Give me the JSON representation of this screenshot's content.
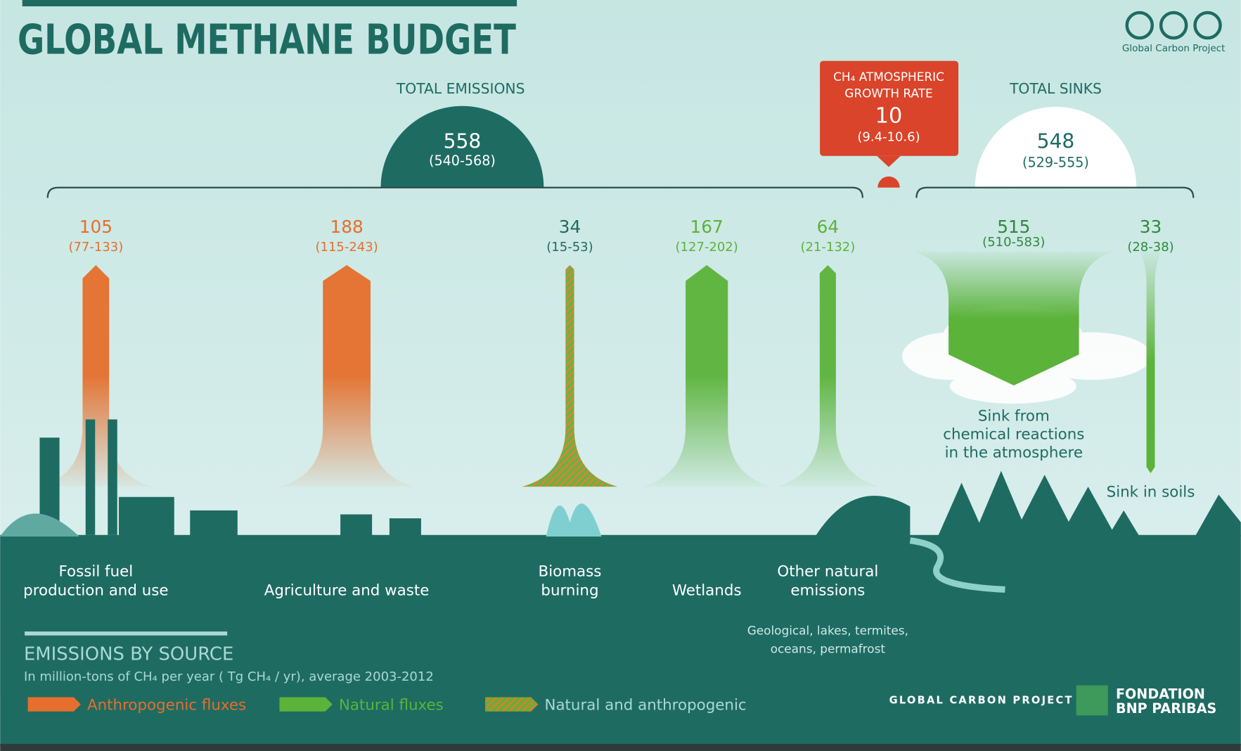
{
  "header": {
    "title": "GLOBAL METHANE BUDGET",
    "credit": "Global Carbon Project"
  },
  "emissions": {
    "title": "TOTAL EMISSIONS",
    "value": 558,
    "range": "(540-568)"
  },
  "growth": {
    "title": [
      "CH₄ ATMOSPHERIC",
      "GROWTH RATE"
    ],
    "value": 10,
    "range": "(9.4-10.6)"
  },
  "sinks": {
    "title": "TOTAL SINKS",
    "value": 548,
    "range": "(529-555)"
  },
  "sources": [
    {
      "value": 105,
      "range": "(77-133)",
      "label": [
        "Fossil fuel",
        "production and use"
      ],
      "color": "#e56f2c"
    },
    {
      "value": 188,
      "range": "(115-243)",
      "label": [
        "Agriculture and waste"
      ],
      "color": "#e56f2c"
    },
    {
      "value": 34,
      "range": "(15-53)",
      "label": [
        "Biomass",
        "burning"
      ],
      "color": "#c9862c",
      "stripe": "#5bb33a"
    },
    {
      "value": 167,
      "range": "(127-202)",
      "label": [
        "Wetlands"
      ],
      "color": "#5bb33a"
    },
    {
      "value": 64,
      "range": "(21-132)",
      "label": [
        "Other natural",
        "emissions"
      ],
      "note": [
        "Geological, lakes, termites,",
        "oceans, permafrost"
      ],
      "color": "#5bb33a"
    }
  ],
  "sink_items": [
    {
      "value": 515,
      "range": "(510-583)",
      "label": [
        "Sink from",
        "chemical reactions",
        "in the atmosphere"
      ],
      "color": "#5bb33a"
    },
    {
      "value": 33,
      "range": "(28-38)",
      "label": [
        "Sink in soils"
      ],
      "color": "#5bb33a"
    }
  ],
  "legend": {
    "title": "EMISSIONS BY SOURCE",
    "subtitle": "In million-tons of CH₄ per year ( Tg CH₄ / yr), average 2003-2012",
    "items": [
      {
        "label": "Anthropogenic fluxes",
        "color": "#e56f2c"
      },
      {
        "label": "Natural fluxes",
        "color": "#5bb33a"
      },
      {
        "label": "Natural and anthropogenic",
        "color": "#c9862c",
        "stripe": "#5bb33a"
      }
    ]
  },
  "logos": {
    "gcp": "GLOBAL CARBON PROJECT",
    "bnp": [
      "FONDATION",
      "BNP PARIBAS"
    ]
  }
}
